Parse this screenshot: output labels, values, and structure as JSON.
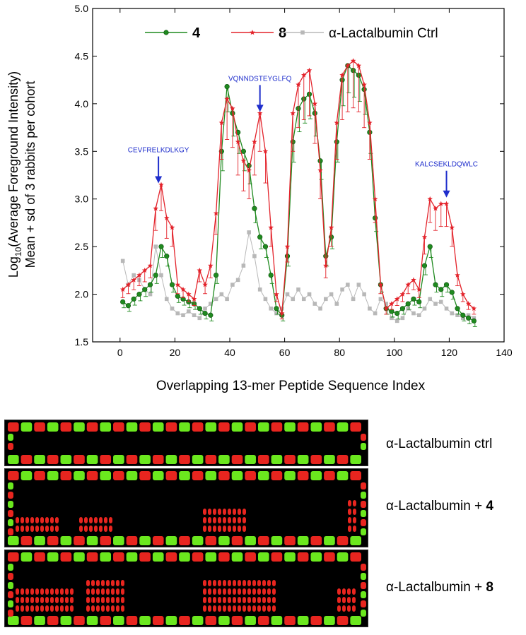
{
  "chart_data": {
    "type": "line",
    "title": "",
    "xlabel": "Overlapping 13-mer Peptide Sequence Index",
    "ylabel_line1_prefix": "Log",
    "ylabel_line1_sub": "10",
    "ylabel_line1_suffix": "(Average Foreground Intensity)",
    "ylabel_line2": "Mean + sd of 3 rabbits per cohort",
    "xlim": [
      -10,
      140
    ],
    "ylim": [
      1.5,
      5.0
    ],
    "xticks": [
      "0",
      "20",
      "40",
      "60",
      "80",
      "100",
      "120",
      "140"
    ],
    "yticks": [
      "1.5",
      "2.0",
      "2.5",
      "3.0",
      "3.5",
      "4.0",
      "4.5",
      "5.0"
    ],
    "legend_position": "top",
    "grid": false,
    "series": [
      {
        "name": "4",
        "color": "#1f8a1f",
        "marker": "sphere",
        "x": [
          1,
          3,
          5,
          7,
          9,
          11,
          13,
          15,
          17,
          19,
          21,
          23,
          25,
          27,
          29,
          31,
          33,
          35,
          37,
          39,
          41,
          43,
          45,
          47,
          49,
          51,
          53,
          55,
          57,
          59,
          61,
          63,
          65,
          67,
          69,
          71,
          73,
          75,
          77,
          79,
          81,
          83,
          85,
          87,
          89,
          91,
          93,
          95,
          97,
          99,
          101,
          103,
          105,
          107,
          109,
          111,
          113,
          115,
          117,
          119,
          121,
          123,
          125,
          127,
          129
        ],
        "values": [
          1.92,
          1.88,
          1.95,
          2.0,
          2.05,
          2.1,
          2.2,
          2.5,
          2.4,
          2.1,
          1.98,
          1.95,
          1.92,
          1.9,
          1.85,
          1.8,
          1.78,
          2.2,
          3.5,
          4.18,
          3.9,
          3.7,
          3.5,
          3.35,
          2.9,
          2.6,
          2.5,
          2.2,
          1.85,
          1.78,
          2.4,
          3.6,
          3.95,
          4.05,
          4.1,
          3.9,
          3.4,
          2.4,
          2.6,
          3.6,
          4.25,
          4.4,
          4.35,
          4.3,
          4.15,
          3.7,
          2.8,
          2.1,
          1.85,
          1.82,
          1.8,
          1.85,
          1.9,
          1.95,
          1.92,
          2.3,
          2.5,
          2.1,
          2.05,
          2.1,
          2.02,
          1.85,
          1.78,
          1.75,
          1.72
        ]
      },
      {
        "name": "8",
        "color": "#e3222a",
        "marker": "star",
        "x": [
          1,
          3,
          5,
          7,
          9,
          11,
          13,
          15,
          17,
          19,
          21,
          23,
          25,
          27,
          29,
          31,
          33,
          35,
          37,
          39,
          41,
          43,
          45,
          47,
          49,
          51,
          53,
          55,
          57,
          59,
          61,
          63,
          65,
          67,
          69,
          71,
          73,
          75,
          77,
          79,
          81,
          83,
          85,
          87,
          89,
          91,
          93,
          95,
          97,
          99,
          101,
          103,
          105,
          107,
          109,
          111,
          113,
          115,
          117,
          119,
          121,
          123,
          125,
          127,
          129
        ],
        "values": [
          2.05,
          2.1,
          2.15,
          2.2,
          2.25,
          2.3,
          2.9,
          3.15,
          2.8,
          2.7,
          2.1,
          2.05,
          2.0,
          1.95,
          2.25,
          2.1,
          2.3,
          2.85,
          3.8,
          4.05,
          3.95,
          3.6,
          3.4,
          3.3,
          3.6,
          3.9,
          3.5,
          2.7,
          2.0,
          1.8,
          2.5,
          3.9,
          4.2,
          4.3,
          4.35,
          4.0,
          3.3,
          2.3,
          2.7,
          3.8,
          4.3,
          4.4,
          4.45,
          4.4,
          4.2,
          3.8,
          3.0,
          2.1,
          1.85,
          1.9,
          1.95,
          2.0,
          2.1,
          2.15,
          2.05,
          2.6,
          3.0,
          2.9,
          2.95,
          2.95,
          2.7,
          2.2,
          2.0,
          1.9,
          1.85
        ]
      },
      {
        "name": "α-Lactalbumin Ctrl",
        "color": "#b8b8b8",
        "marker": "square",
        "x": [
          1,
          3,
          5,
          7,
          9,
          11,
          13,
          15,
          17,
          19,
          21,
          23,
          25,
          27,
          29,
          31,
          33,
          35,
          37,
          39,
          41,
          43,
          45,
          47,
          49,
          51,
          53,
          55,
          57,
          59,
          61,
          63,
          65,
          67,
          69,
          71,
          73,
          75,
          77,
          79,
          81,
          83,
          85,
          87,
          89,
          91,
          93,
          95,
          97,
          99,
          101,
          103,
          105,
          107,
          109,
          111,
          113,
          115,
          117,
          119,
          121,
          123,
          125,
          127,
          129
        ],
        "values": [
          2.35,
          2.1,
          2.2,
          2.15,
          2.05,
          2.0,
          2.5,
          2.2,
          1.95,
          1.85,
          1.8,
          1.78,
          1.82,
          1.78,
          1.75,
          1.85,
          1.9,
          1.95,
          2.0,
          1.95,
          2.1,
          2.15,
          2.3,
          2.65,
          2.4,
          2.05,
          1.95,
          1.85,
          1.8,
          1.85,
          2.0,
          1.95,
          2.05,
          1.95,
          2.0,
          1.9,
          1.85,
          1.95,
          2.0,
          1.9,
          2.05,
          2.1,
          1.95,
          2.1,
          2.0,
          1.85,
          1.8,
          1.95,
          1.9,
          1.75,
          1.72,
          1.75,
          1.85,
          1.8,
          1.78,
          1.85,
          1.95,
          1.9,
          1.92,
          1.85,
          1.8,
          1.78,
          1.75,
          1.78,
          1.75
        ]
      }
    ],
    "annotations": [
      {
        "text": "CEVFRELKDLKGY",
        "x": 14,
        "y": 3.15
      },
      {
        "text": "VQNNDSTEYGLFQ",
        "x": 51,
        "y": 3.9
      },
      {
        "text": "KALCSEKLDQWLC",
        "x": 119,
        "y": 3.0
      }
    ]
  },
  "panels": [
    {
      "label": "α-Lactalbumin ctrl",
      "label_bold": ""
    },
    {
      "label": "α-Lactalbumin + ",
      "label_bold": "4"
    },
    {
      "label": "α-Lactalbumin + ",
      "label_bold": "8"
    }
  ],
  "colors": {
    "spot_red": "#e8251f",
    "spot_green": "#6be81e",
    "panel_bg": "#000000",
    "annotation_blue": "#1f2ecc"
  }
}
